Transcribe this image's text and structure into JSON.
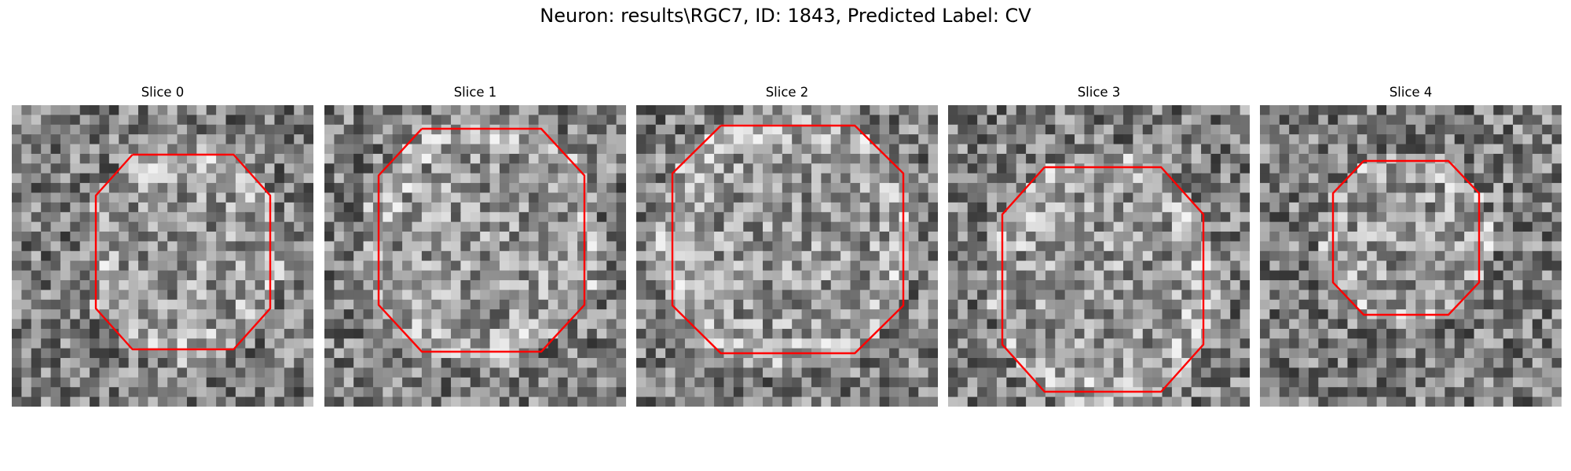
{
  "figure": {
    "suptitle": "Neuron: results\\RGC7, ID: 1843, Predicted Label: CV",
    "outline_color": "#ff0000"
  },
  "panels": [
    {
      "title": "Slice 0"
    },
    {
      "title": "Slice 1"
    },
    {
      "title": "Slice 2"
    },
    {
      "title": "Slice 3"
    },
    {
      "title": "Slice 4"
    }
  ]
}
